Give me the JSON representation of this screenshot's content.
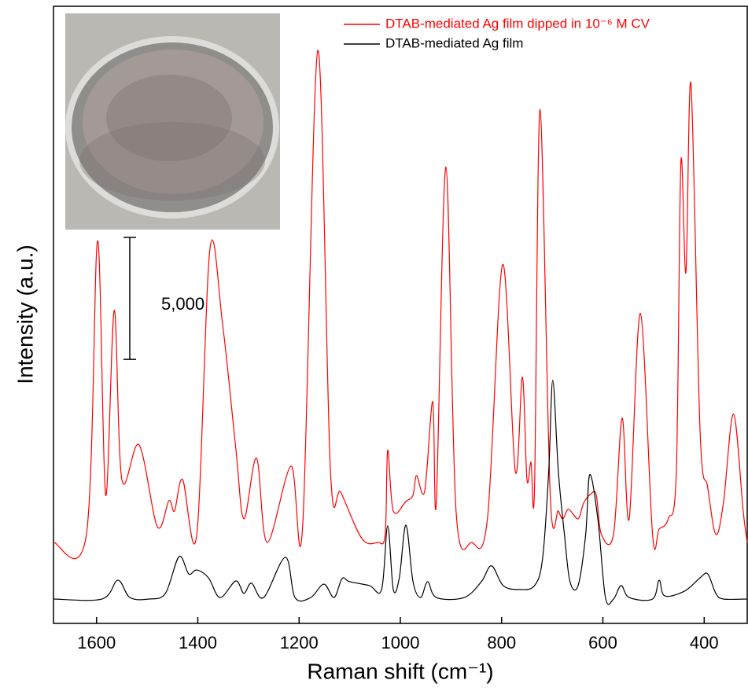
{
  "chart_data": {
    "type": "line",
    "xlabel": "Raman shift (cm⁻¹)",
    "ylabel": "Intensity (a.u.)",
    "xlim": [
      1685,
      315
    ],
    "ylim": [
      0,
      25300
    ],
    "xticks": [
      1600,
      1400,
      1200,
      1000,
      800,
      600,
      400
    ],
    "scale_bar": {
      "value": 5000,
      "label": "5,000"
    },
    "series": [
      {
        "name": "DTAB-mediated Ag film dipped in 10⁻⁶ M CV",
        "color": "#ff0000",
        "x": [
          1685,
          1620,
          1598,
          1582,
          1565,
          1550,
          1516,
          1480,
          1457,
          1446,
          1430,
          1402,
          1376,
          1351,
          1325,
          1309,
          1284,
          1263,
          1216,
          1193,
          1163,
          1138,
          1117,
          1076,
          1045,
          1030,
          1025,
          1014,
          989,
          975,
          968,
          952,
          936,
          929,
          910,
          890,
          859,
          828,
          798,
          773,
          759,
          750,
          742,
          735,
          724,
          704,
          688,
          679,
          668,
          649,
          638,
          623,
          613,
          603,
          579,
          562,
          548,
          526,
          502,
          489,
          471,
          455,
          446,
          436,
          426,
          408,
          393,
          377,
          362,
          342,
          323,
          315
        ],
        "values": [
          3320,
          3650,
          15680,
          5260,
          12840,
          5900,
          7320,
          3970,
          5030,
          4610,
          5900,
          3650,
          15360,
          12260,
          7190,
          4290,
          6770,
          3320,
          6450,
          3970,
          23490,
          6230,
          5360,
          3480,
          3320,
          3650,
          7100,
          4610,
          5000,
          5260,
          6060,
          5420,
          9100,
          4940,
          18710,
          4610,
          3320,
          4290,
          14710,
          6230,
          10100,
          5900,
          6610,
          5580,
          21070,
          5260,
          4610,
          4290,
          4680,
          4290,
          4940,
          5320,
          5260,
          3650,
          3650,
          8420,
          4290,
          12710,
          3650,
          3870,
          4290,
          6230,
          18900,
          14390,
          22100,
          7840,
          5580,
          3650,
          4940,
          8580,
          4610,
          3320
        ]
      },
      {
        "name": "DTAB-mediated Ag film",
        "color": "#000000",
        "x": [
          1685,
          1589,
          1558,
          1534,
          1496,
          1464,
          1437,
          1418,
          1402,
          1379,
          1356,
          1325,
          1309,
          1294,
          1270,
          1227,
          1208,
          1177,
          1151,
          1131,
          1115,
          1100,
          1061,
          1037,
          1025,
          1014,
          1002,
          989,
          975,
          960,
          946,
          929,
          874,
          840,
          820,
          797,
          766,
          735,
          719,
          707,
          699,
          688,
          676,
          665,
          649,
          634,
          626,
          610,
          595,
          579,
          564,
          548,
          502,
          489,
          478,
          439,
          408,
          393,
          377,
          362,
          315
        ],
        "values": [
          1000,
          1000,
          1770,
          1060,
          1000,
          1230,
          2740,
          2030,
          2190,
          1870,
          1060,
          1740,
          1230,
          1650,
          1060,
          2710,
          1060,
          1060,
          1610,
          1060,
          1840,
          1710,
          1550,
          1390,
          4000,
          1390,
          1870,
          4030,
          1710,
          1060,
          1710,
          1060,
          1060,
          1710,
          2360,
          1550,
          1390,
          1550,
          2680,
          6230,
          9970,
          6230,
          3650,
          1710,
          1550,
          3650,
          6100,
          4290,
          1060,
          1000,
          1550,
          1060,
          1000,
          1770,
          1130,
          1320,
          1870,
          2030,
          1230,
          1000,
          1000
        ]
      }
    ]
  }
}
